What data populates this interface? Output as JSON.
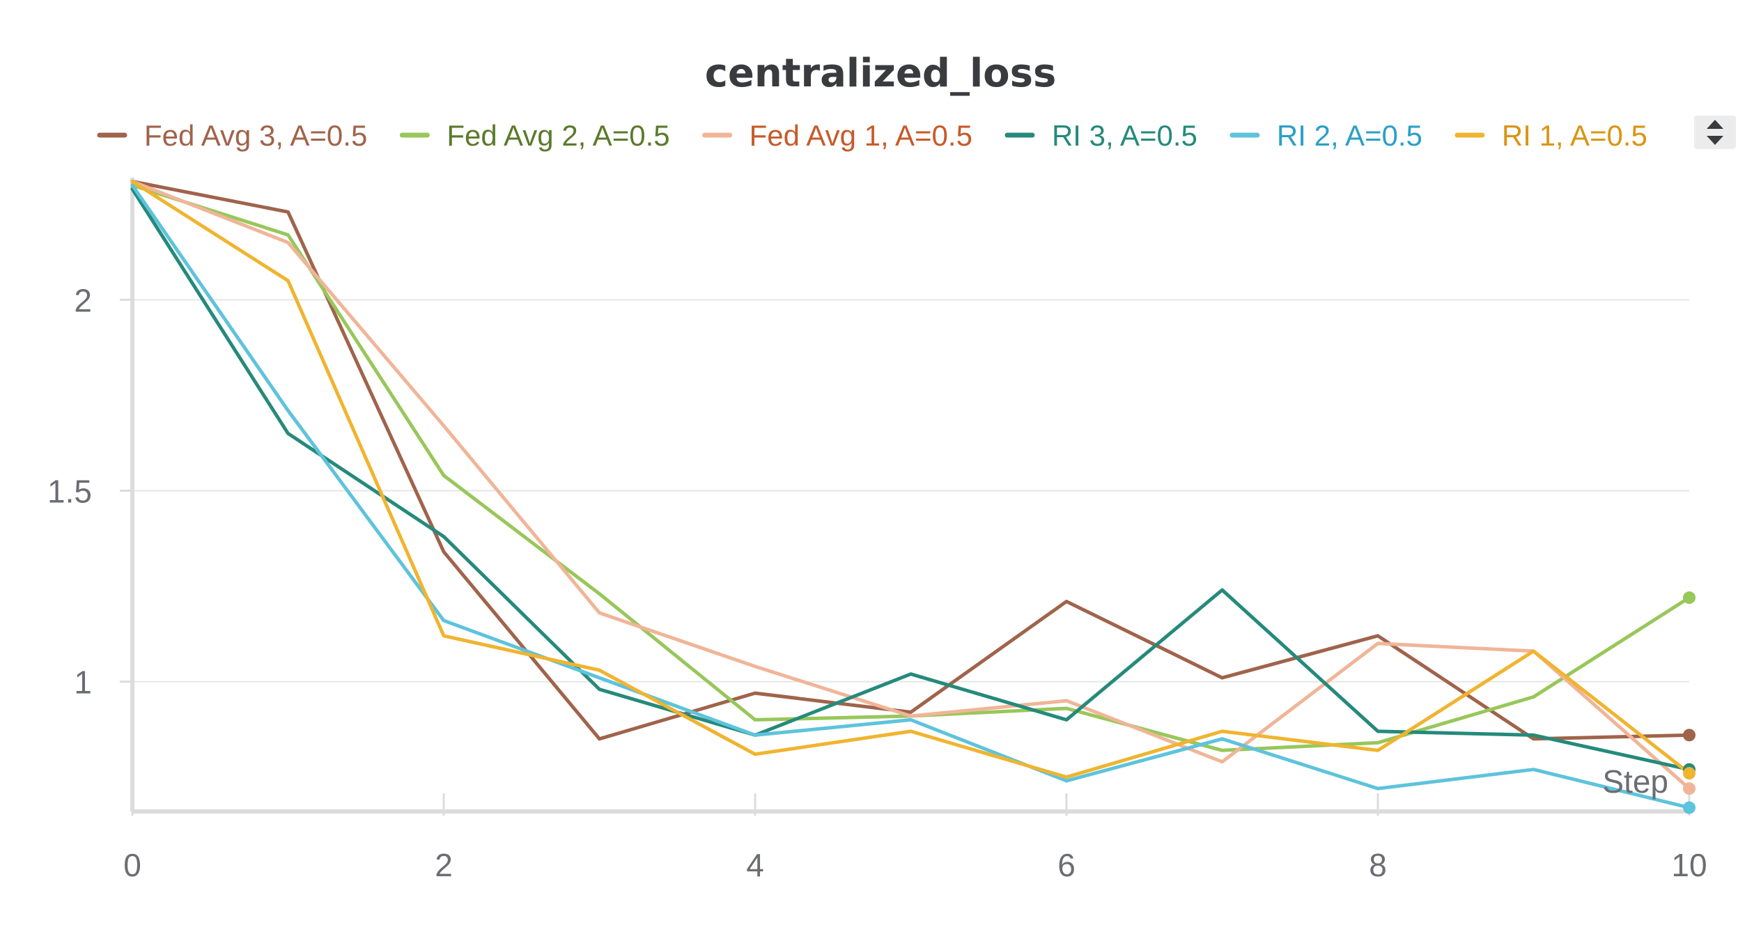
{
  "chart_data": {
    "type": "line",
    "title": "centralized_loss",
    "xlabel": "Step",
    "ylabel": "",
    "x": [
      0,
      1,
      2,
      3,
      4,
      5,
      6,
      7,
      8,
      9,
      10
    ],
    "xlim": [
      0,
      10
    ],
    "ylim": [
      0.66,
      2.32
    ],
    "x_ticks": [
      "0",
      "2",
      "4",
      "6",
      "8",
      "10"
    ],
    "y_ticks": [
      "1",
      "1.5",
      "2"
    ],
    "grid": true,
    "legend_position": "top",
    "series": [
      {
        "name": "Fed Avg 3, A=0.5",
        "color": "#a0634b",
        "label_color": "#a0634b",
        "values": [
          2.31,
          2.23,
          1.34,
          0.85,
          0.97,
          0.92,
          1.21,
          1.01,
          1.12,
          0.85,
          0.86
        ]
      },
      {
        "name": "Fed Avg 2, A=0.5",
        "color": "#98c75a",
        "label_color": "#5b7a2c",
        "values": [
          2.3,
          2.17,
          1.54,
          1.23,
          0.9,
          0.91,
          0.93,
          0.82,
          0.84,
          0.96,
          1.22
        ]
      },
      {
        "name": "Fed Avg 1, A=0.5",
        "color": "#f0b598",
        "label_color": "#c75a2a",
        "values": [
          2.31,
          2.15,
          1.67,
          1.18,
          1.04,
          0.91,
          0.95,
          0.79,
          1.1,
          1.08,
          0.72
        ]
      },
      {
        "name": "RI 3, A=0.5",
        "color": "#258a7b",
        "label_color": "#258a7b",
        "values": [
          2.29,
          1.65,
          1.38,
          0.98,
          0.86,
          1.02,
          0.9,
          1.24,
          0.87,
          0.86,
          0.77
        ]
      },
      {
        "name": "RI 2, A=0.5",
        "color": "#5ec3dc",
        "label_color": "#2c9fc7",
        "values": [
          2.3,
          1.71,
          1.16,
          1.01,
          0.86,
          0.9,
          0.74,
          0.85,
          0.72,
          0.77,
          0.67
        ]
      },
      {
        "name": "RI 1, A=0.5",
        "color": "#f0b42f",
        "label_color": "#d99514",
        "values": [
          2.31,
          2.05,
          1.12,
          1.03,
          0.81,
          0.87,
          0.75,
          0.87,
          0.82,
          1.08,
          0.76
        ]
      }
    ]
  }
}
